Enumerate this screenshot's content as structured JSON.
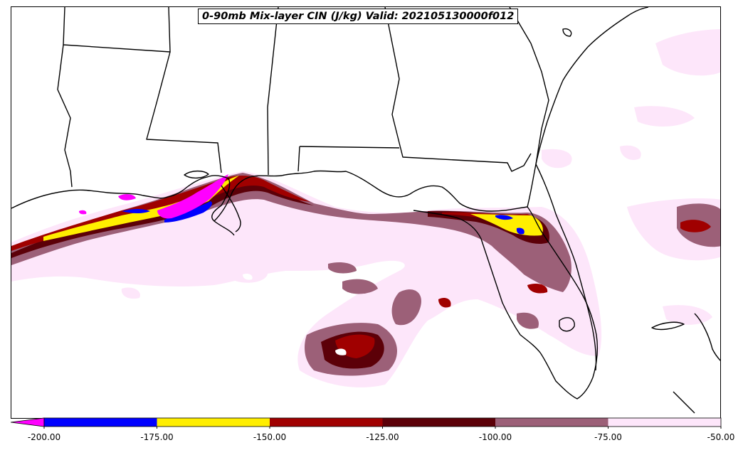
{
  "title": "0-90mb Mix-layer CIN (J/kg) Valid: 202105130000f012",
  "colorbar": {
    "extend": "min",
    "under_color": "#ff00ff",
    "levels": [
      -200,
      -175,
      -150,
      -125,
      -100,
      -75,
      -50
    ],
    "tick_labels": [
      "-200.00",
      "-175.00",
      "-150.00",
      "-125.00",
      "-100.00",
      "-75.00",
      "-50.00"
    ],
    "colors": [
      "#0000ff",
      "#ffee00",
      "#a00000",
      "#5c0008",
      "#9c6078",
      "#fde6fa"
    ]
  }
}
